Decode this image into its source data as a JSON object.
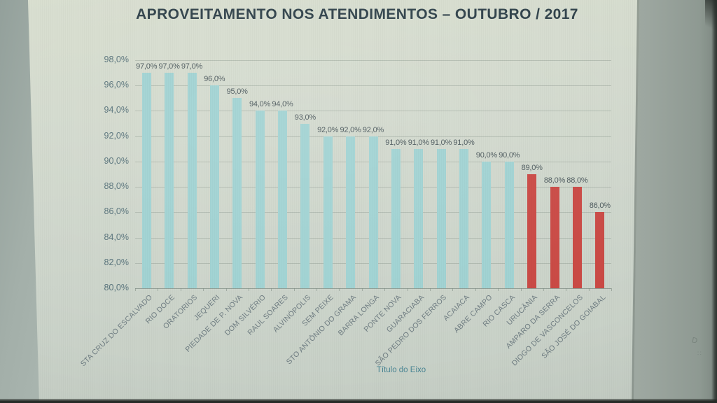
{
  "chart_data": {
    "type": "bar",
    "title": "APROVEITAMENTO NOS ATENDIMENTOS – OUTUBRO / 2017",
    "xlabel": "Título do Eixo",
    "ylabel": "",
    "ylim": [
      80,
      98
    ],
    "ytick_step": 2,
    "ytick_labels": [
      "98,0%",
      "96,0%",
      "94,0%",
      "92,0%",
      "90,0%",
      "88,0%",
      "86,0%",
      "84,0%",
      "82,0%",
      "80,0%"
    ],
    "grid": true,
    "legend": "none",
    "colors": {
      "default": "#9fd2d2",
      "highlight": "#c94742",
      "title_text": "#2c3e47",
      "axis_text": "#567179",
      "value_text": "#49565a",
      "category_text": "#6d7b80"
    },
    "points": [
      {
        "label": "STA CRUZ DO ESCALVADO",
        "value": 97.0,
        "display": "97,0%",
        "color": "default"
      },
      {
        "label": "RIO DOCE",
        "value": 97.0,
        "display": "97,0%",
        "color": "default"
      },
      {
        "label": "ORATORIOS",
        "value": 97.0,
        "display": "97,0%",
        "color": "default"
      },
      {
        "label": "JEQUERI",
        "value": 96.0,
        "display": "96,0%",
        "color": "default"
      },
      {
        "label": "PIEDADE DE P. NOVA",
        "value": 95.0,
        "display": "95,0%",
        "color": "default"
      },
      {
        "label": "DOM SILVÉRIO",
        "value": 94.0,
        "display": "94,0%",
        "color": "default"
      },
      {
        "label": "RAUL SOARES",
        "value": 94.0,
        "display": "94,0%",
        "color": "default"
      },
      {
        "label": "ALVINÓPOLIS",
        "value": 93.0,
        "display": "93,0%",
        "color": "default"
      },
      {
        "label": "SEM PEIXE",
        "value": 92.0,
        "display": "92,0%",
        "color": "default"
      },
      {
        "label": "STO ANTÔNIO DO GRAMA",
        "value": 92.0,
        "display": "92,0%",
        "color": "default"
      },
      {
        "label": "BARRA LONGA",
        "value": 92.0,
        "display": "92,0%",
        "color": "default"
      },
      {
        "label": "PONTE NOVA",
        "value": 91.0,
        "display": "91,0%",
        "color": "default"
      },
      {
        "label": "GUARACIABA",
        "value": 91.0,
        "display": "91,0%",
        "color": "default"
      },
      {
        "label": "SÃO PEDRO DOS FERROS",
        "value": 91.0,
        "display": "91,0%",
        "color": "default"
      },
      {
        "label": "ACAIACA",
        "value": 91.0,
        "display": "91,0%",
        "color": "default"
      },
      {
        "label": "ABRE CAMPO",
        "value": 90.0,
        "display": "90,0%",
        "color": "default"
      },
      {
        "label": "RIO CASCA",
        "value": 90.0,
        "display": "90,0%",
        "color": "default"
      },
      {
        "label": "URUCÂNIA",
        "value": 89.0,
        "display": "89,0%",
        "color": "highlight"
      },
      {
        "label": "AMPARO DA SERRA",
        "value": 88.0,
        "display": "88,0%",
        "color": "highlight"
      },
      {
        "label": "DIOGO DE VASCONCELOS",
        "value": 88.0,
        "display": "88,0%",
        "color": "highlight"
      },
      {
        "label": "SÃO JOSÉ DO GOIABAL",
        "value": 86.0,
        "display": "86,0%",
        "color": "highlight"
      }
    ]
  }
}
